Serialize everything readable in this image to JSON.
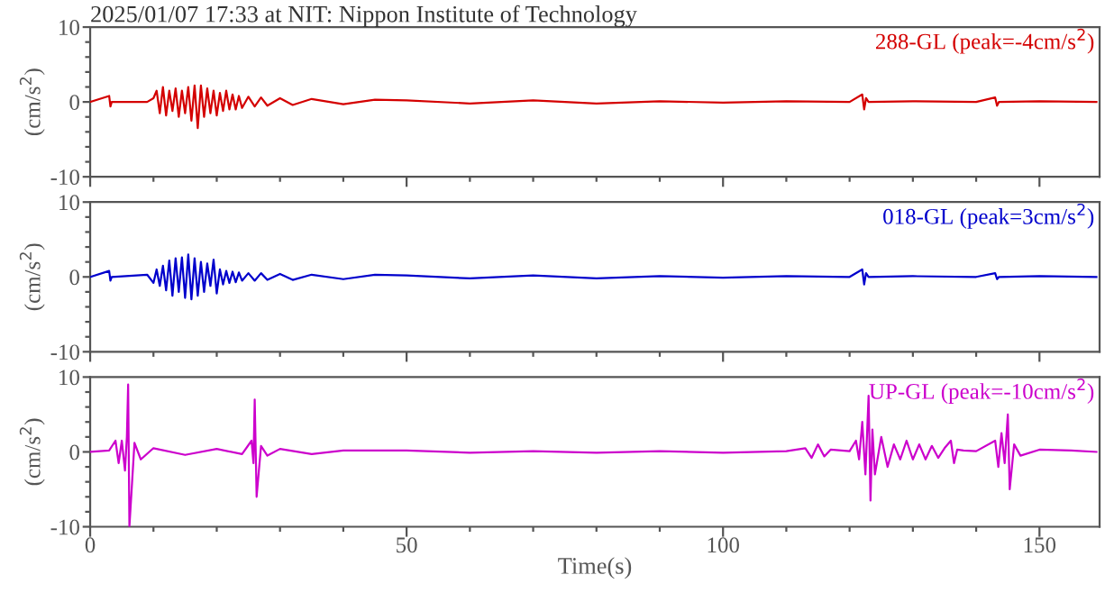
{
  "chart_data": [
    {
      "type": "line",
      "title": "2025/01/07 17:33 at NIT: Nippon Institute of Technology",
      "ylabel": "(cm/s$^{2}$)",
      "xlim": [
        0,
        159.5
      ],
      "ylim": [
        -10,
        10
      ],
      "xticks": [
        0,
        {
          "value": 10,
          "label": null
        },
        {
          "value": 20,
          "label": null
        },
        {
          "value": 30,
          "label": null
        },
        {
          "value": 40,
          "label": null
        },
        50,
        {
          "value": 60,
          "label": null
        },
        {
          "value": 70,
          "label": null
        },
        {
          "value": 80,
          "label": null
        },
        {
          "value": 90,
          "label": null
        },
        100,
        {
          "value": 110,
          "label": null
        },
        {
          "value": 120,
          "label": null
        },
        {
          "value": 130,
          "label": null
        },
        {
          "value": 140,
          "label": null
        },
        150
      ],
      "yticks": [
        -10,
        {
          "value": -8,
          "label": null
        },
        {
          "value": -6,
          "label": null
        },
        {
          "value": -4,
          "label": null
        },
        {
          "value": -2,
          "label": null
        },
        0,
        {
          "value": 2,
          "label": null
        },
        {
          "value": 4,
          "label": null
        },
        {
          "value": 6,
          "label": null
        },
        {
          "value": 8,
          "label": null
        },
        10
      ],
      "tick_labels": "y",
      "grid": false,
      "legend": false,
      "series": [
        {
          "name": "288-GL (peak=-4cm/s$^{2}$)",
          "color": "#d40000",
          "x": [
            0,
            3,
            3.2,
            3.4,
            9,
            10,
            10.5,
            11,
            11.5,
            12,
            12.5,
            13,
            13.5,
            14,
            14.5,
            15,
            15.5,
            16,
            16.5,
            17,
            17.5,
            18,
            18.5,
            19,
            19.5,
            20,
            20.5,
            21,
            21.5,
            22,
            22.5,
            23,
            23.5,
            24,
            25,
            26,
            27,
            28,
            30,
            32,
            35,
            40,
            45,
            50,
            60,
            70,
            80,
            90,
            100,
            110,
            120,
            122,
            122.3,
            122.6,
            123,
            130,
            140,
            143,
            143.3,
            143.6,
            150,
            159
          ],
          "values": [
            0,
            0.8,
            -0.6,
            0,
            0,
            0.5,
            1.5,
            -1.5,
            2,
            -1.8,
            1.5,
            -1.2,
            1.8,
            -2,
            1.5,
            -1.5,
            2,
            -2.5,
            2.2,
            -3.5,
            2.2,
            -2,
            1.8,
            -1.5,
            1.5,
            -1.8,
            1.2,
            -1.2,
            1.5,
            -1,
            1,
            -1,
            0.8,
            -0.8,
            0.7,
            -0.6,
            0.6,
            -0.5,
            0.5,
            -0.4,
            0.4,
            -0.3,
            0.3,
            0.2,
            -0.2,
            0.2,
            -0.2,
            0.1,
            -0.1,
            0.1,
            0,
            1,
            -1,
            0.5,
            0,
            0.1,
            0,
            0.6,
            -0.5,
            0,
            0.1,
            0
          ]
        }
      ]
    },
    {
      "type": "line",
      "ylabel": "(cm/s$^{2}$)",
      "xlim": [
        0,
        159.5
      ],
      "ylim": [
        -10,
        10
      ],
      "xticks": [
        0,
        {
          "value": 10,
          "label": null
        },
        {
          "value": 20,
          "label": null
        },
        {
          "value": 30,
          "label": null
        },
        {
          "value": 40,
          "label": null
        },
        50,
        {
          "value": 60,
          "label": null
        },
        {
          "value": 70,
          "label": null
        },
        {
          "value": 80,
          "label": null
        },
        {
          "value": 90,
          "label": null
        },
        100,
        {
          "value": 110,
          "label": null
        },
        {
          "value": 120,
          "label": null
        },
        {
          "value": 130,
          "label": null
        },
        {
          "value": 140,
          "label": null
        },
        150
      ],
      "yticks": [
        -10,
        {
          "value": -8,
          "label": null
        },
        {
          "value": -6,
          "label": null
        },
        {
          "value": -4,
          "label": null
        },
        {
          "value": -2,
          "label": null
        },
        0,
        {
          "value": 2,
          "label": null
        },
        {
          "value": 4,
          "label": null
        },
        {
          "value": 6,
          "label": null
        },
        {
          "value": 8,
          "label": null
        },
        10
      ],
      "tick_labels": "y",
      "grid": false,
      "legend": false,
      "series": [
        {
          "name": "018-GL (peak=3cm/s$^{2}$)",
          "color": "#0000cc",
          "x": [
            0,
            3,
            3.2,
            3.4,
            9,
            10,
            10.5,
            11,
            11.5,
            12,
            12.5,
            13,
            13.5,
            14,
            14.5,
            15,
            15.5,
            16,
            16.5,
            17,
            17.5,
            18,
            18.5,
            19,
            19.5,
            20,
            20.5,
            21,
            21.5,
            22,
            22.5,
            23,
            23.5,
            24,
            25,
            26,
            27,
            28,
            30,
            32,
            35,
            40,
            45,
            50,
            60,
            70,
            80,
            90,
            100,
            110,
            120,
            122,
            122.3,
            122.6,
            123,
            130,
            140,
            143,
            143.3,
            143.6,
            150,
            159
          ],
          "values": [
            0,
            0.8,
            -0.5,
            0,
            0.3,
            -0.8,
            1,
            -1.2,
            1.5,
            -1.8,
            2.2,
            -2.5,
            2.5,
            -2,
            2.6,
            -2.8,
            3,
            -3,
            2.5,
            -2.5,
            2,
            -2,
            1.8,
            -1.2,
            2.3,
            -2.2,
            1,
            -1,
            0.8,
            -0.8,
            0.7,
            -0.7,
            0.6,
            -0.5,
            0.5,
            -0.5,
            0.5,
            -0.4,
            0.4,
            -0.4,
            0.3,
            -0.3,
            0.3,
            0.2,
            -0.2,
            0.2,
            -0.2,
            0.1,
            -0.1,
            0.1,
            0,
            1,
            -1,
            0.5,
            0,
            0.1,
            0,
            0.5,
            -0.3,
            0,
            0.1,
            0
          ]
        }
      ]
    },
    {
      "type": "line",
      "xlabel": "Time(s)",
      "ylabel": "(cm/s$^{2}$)",
      "xlim": [
        0,
        159.5
      ],
      "ylim": [
        -10,
        10
      ],
      "xticks": [
        0,
        {
          "value": 10,
          "label": null
        },
        {
          "value": 20,
          "label": null
        },
        {
          "value": 30,
          "label": null
        },
        {
          "value": 40,
          "label": null
        },
        50,
        {
          "value": 60,
          "label": null
        },
        {
          "value": 70,
          "label": null
        },
        {
          "value": 80,
          "label": null
        },
        {
          "value": 90,
          "label": null
        },
        100,
        {
          "value": 110,
          "label": null
        },
        {
          "value": 120,
          "label": null
        },
        {
          "value": 130,
          "label": null
        },
        {
          "value": 140,
          "label": null
        },
        150
      ],
      "yticks": [
        -10,
        {
          "value": -8,
          "label": null
        },
        {
          "value": -6,
          "label": null
        },
        {
          "value": -4,
          "label": null
        },
        {
          "value": -2,
          "label": null
        },
        0,
        {
          "value": 2,
          "label": null
        },
        {
          "value": 4,
          "label": null
        },
        {
          "value": 6,
          "label": null
        },
        {
          "value": 8,
          "label": null
        },
        10
      ],
      "grid": false,
      "legend": false,
      "series": [
        {
          "name": "UP-GL (peak=-10cm/s$^{2}$)",
          "color": "#cc00cc",
          "x": [
            0,
            3,
            4,
            4.5,
            5,
            5.5,
            5.8,
            6,
            6.2,
            7,
            8,
            10,
            15,
            20,
            24,
            25.5,
            25.8,
            26,
            26.3,
            27,
            28,
            30,
            35,
            40,
            50,
            60,
            70,
            80,
            90,
            100,
            110,
            113,
            114,
            115,
            116,
            117,
            120,
            121,
            121.5,
            122,
            122.5,
            123,
            123.3,
            123.6,
            124,
            125,
            126,
            127,
            128,
            129,
            130,
            131,
            132,
            133,
            134,
            135,
            136,
            136.5,
            137,
            138,
            140,
            143,
            143.5,
            144,
            144.5,
            145,
            145.3,
            146,
            147,
            150,
            155,
            159
          ],
          "values": [
            0,
            0.2,
            1.5,
            -1.5,
            1.5,
            -2.5,
            2,
            9,
            -10,
            1.2,
            -1,
            0.5,
            -0.4,
            0.4,
            -0.3,
            1.5,
            -1.5,
            7,
            -6,
            0.8,
            -0.5,
            0.4,
            -0.3,
            0.2,
            0.2,
            -0.1,
            0.1,
            -0.1,
            0.1,
            -0.1,
            0.1,
            0.5,
            -0.8,
            1,
            -0.6,
            0.3,
            0.1,
            1.5,
            -1,
            4,
            -3,
            7.5,
            -6.5,
            3,
            -3,
            2,
            -2,
            1,
            -1,
            1.5,
            -1,
            1,
            -1,
            0.8,
            -0.8,
            0.5,
            1.5,
            -1.5,
            0.3,
            0.2,
            0.1,
            1.5,
            -2,
            2.5,
            -1.5,
            5,
            -5,
            1,
            -0.5,
            0.3,
            0.2,
            0
          ]
        }
      ]
    }
  ]
}
